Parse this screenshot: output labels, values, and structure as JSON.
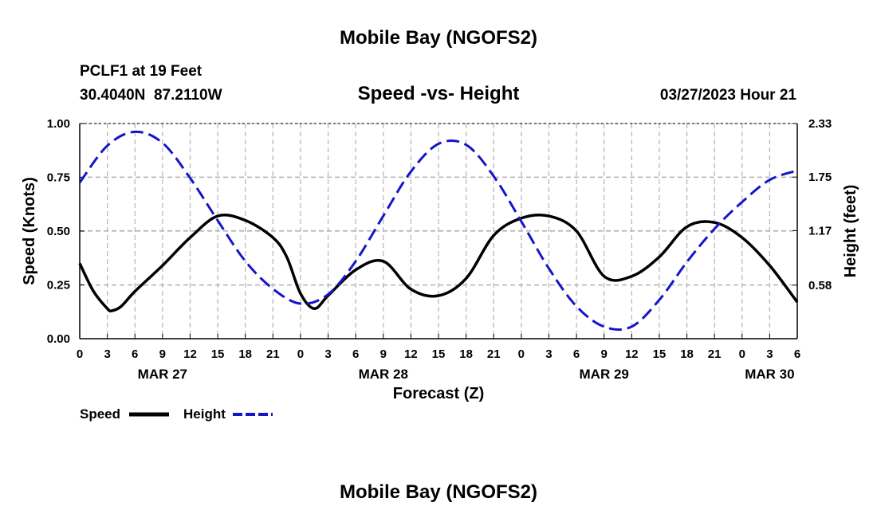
{
  "page_title": "Mobile Bay (NGOFS2)",
  "page_title_repeat": "Mobile Bay (NGOFS2)",
  "station": {
    "name_line": "PCLF1 at 19 Feet",
    "coords_line": "30.4040N  87.2110W"
  },
  "timestamp": "03/27/2023 Hour 21",
  "legend": {
    "speed_label": "Speed",
    "height_label": "Height"
  },
  "colors": {
    "speed": "#000000",
    "height": "#1515c8",
    "grid": "#b4b4b4"
  },
  "chart_data": {
    "type": "line",
    "title": "Speed -vs- Height",
    "xlabel": "Forecast (Z)",
    "ylabel": "Speed (Knots)",
    "y2label": "Height (feet)",
    "xlim": [
      0,
      78
    ],
    "ylim": [
      0,
      1.0
    ],
    "y2lim": [
      0,
      2.33
    ],
    "x_tick_step": 3,
    "x_tick_labels": [
      "0",
      "3",
      "6",
      "9",
      "12",
      "15",
      "18",
      "21",
      "0",
      "3",
      "6",
      "9",
      "12",
      "15",
      "18",
      "21",
      "0",
      "3",
      "6",
      "9",
      "12",
      "15",
      "18",
      "21",
      "0",
      "3",
      "6"
    ],
    "date_labels": [
      {
        "x": 9,
        "label": "MAR 27"
      },
      {
        "x": 33,
        "label": "MAR 28"
      },
      {
        "x": 57,
        "label": "MAR 29"
      },
      {
        "x": 75,
        "label": "MAR 30"
      }
    ],
    "y_ticks": [
      0,
      0.25,
      0.5,
      0.75,
      1.0
    ],
    "y_tick_labels": [
      "0.00",
      "0.25",
      "0.50",
      "0.75",
      "1.00"
    ],
    "y2_ticks": [
      0.58,
      1.17,
      1.75,
      2.33
    ],
    "y2_tick_labels": [
      "0.58",
      "1.17",
      "1.75",
      "2.33"
    ],
    "series": [
      {
        "name": "Speed",
        "axis": "left",
        "style": "solid",
        "x": [
          0,
          1.5,
          3,
          3.5,
          4.5,
          6,
          9,
          12,
          15,
          18,
          21,
          22.5,
          24,
          25.5,
          27,
          30,
          33,
          36,
          39,
          42,
          45,
          48,
          51,
          54,
          57,
          60,
          63,
          66,
          69,
          72,
          75,
          78
        ],
        "y": [
          0.35,
          0.22,
          0.14,
          0.13,
          0.15,
          0.22,
          0.34,
          0.47,
          0.57,
          0.55,
          0.47,
          0.38,
          0.21,
          0.14,
          0.2,
          0.32,
          0.36,
          0.23,
          0.2,
          0.28,
          0.48,
          0.56,
          0.57,
          0.5,
          0.29,
          0.29,
          0.38,
          0.52,
          0.54,
          0.47,
          0.34,
          0.17
        ]
      },
      {
        "name": "Height",
        "axis": "right",
        "style": "dashed",
        "x": [
          0,
          3,
          6,
          9,
          12,
          15,
          18,
          21,
          24,
          27,
          30,
          33,
          36,
          39,
          42,
          45,
          48,
          51,
          54,
          57,
          60,
          63,
          66,
          69,
          72,
          75,
          78
        ],
        "y": [
          1.69,
          2.09,
          2.24,
          2.12,
          1.74,
          1.28,
          0.84,
          0.54,
          0.38,
          0.48,
          0.84,
          1.33,
          1.81,
          2.11,
          2.1,
          1.76,
          1.27,
          0.76,
          0.35,
          0.13,
          0.13,
          0.42,
          0.83,
          1.19,
          1.48,
          1.72,
          1.82
        ]
      }
    ]
  }
}
